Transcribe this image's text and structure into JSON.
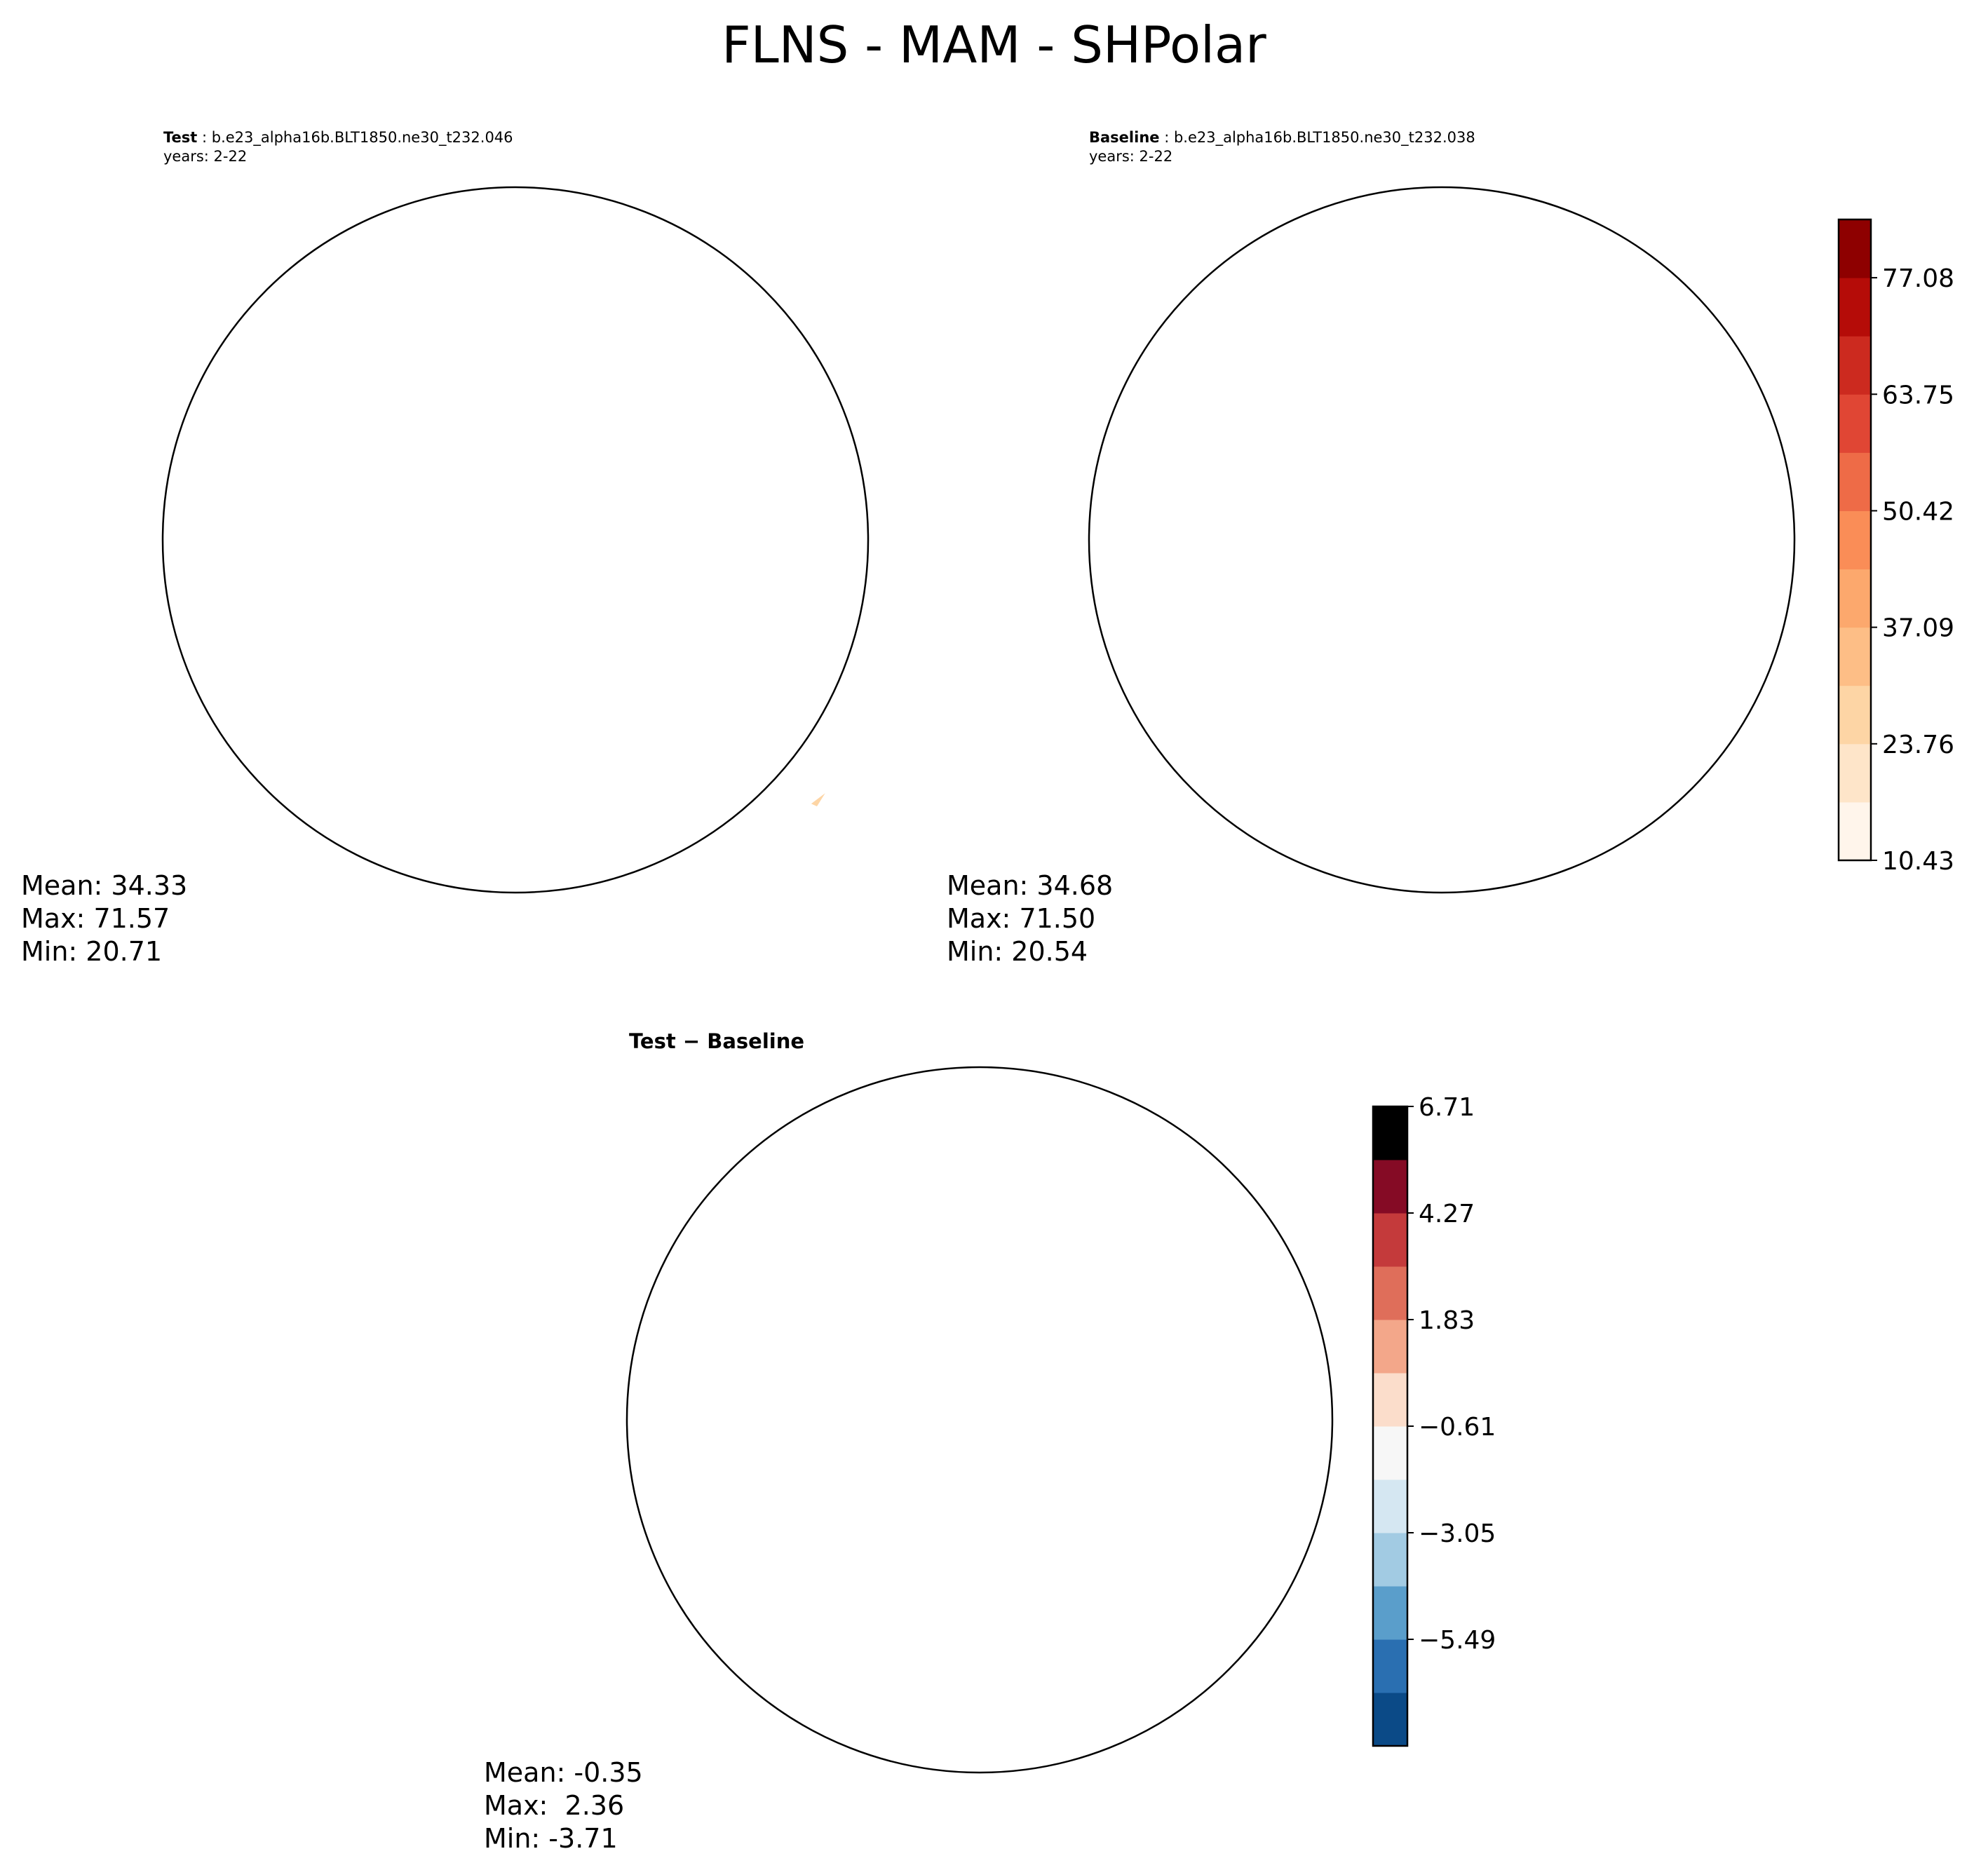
{
  "figure_title": "FLNS - MAM - SHPolar",
  "colors": {
    "seq": [
      "#fff5eb",
      "#fee5c9",
      "#fdd5a5",
      "#fdbe86",
      "#fca86d",
      "#fa8d57",
      "#ee6b47",
      "#e04634",
      "#cc2a1f",
      "#b50c08",
      "#8e0000"
    ],
    "div": [
      "#0b4a87",
      "#2a6fb1",
      "#5a9ecb",
      "#a2cbe3",
      "#d5e7f2",
      "#f7f7f7",
      "#fbddcb",
      "#f3a78a",
      "#df6e5a",
      "#c43a3b",
      "#850b25"
    ],
    "coast": "#000000"
  },
  "chart_data": [
    {
      "type": "heatmap",
      "panel": "test",
      "title_bold": "Test",
      "title_text": " : b.e23_alpha16b.BLT1850.ne30_t232.046",
      "years": "years: 2-22",
      "mean": "Mean: 34.33",
      "max": "Max: 71.57",
      "min": "Min: 20.71",
      "mean_value": 34.33,
      "max_value": 71.57,
      "min_value": 20.71
    },
    {
      "type": "heatmap",
      "panel": "baseline",
      "title_bold": "Baseline",
      "title_text": " : b.e23_alpha16b.BLT1850.ne30_t232.038",
      "years": "years: 2-22",
      "mean": "Mean: 34.68",
      "max": "Max: 71.50",
      "min": "Min: 20.54",
      "mean_value": 34.68,
      "max_value": 71.5,
      "min_value": 20.54,
      "colorbar": {
        "levels": [
          10.43,
          17.095,
          23.76,
          30.425,
          37.09,
          43.755,
          50.42,
          57.085,
          63.75,
          70.415,
          77.08,
          83.745
        ],
        "tick_labels": [
          "10.43",
          "23.76",
          "37.09",
          "50.42",
          "63.75",
          "77.08"
        ],
        "tick_values": [
          10.43,
          23.76,
          37.09,
          50.42,
          63.75,
          77.08
        ]
      }
    },
    {
      "type": "heatmap",
      "panel": "difference",
      "title": "Test − Baseline",
      "mean": "Mean: -0.35",
      "max": "Max:  2.36",
      "min": "Min: -3.71",
      "mean_value": -0.35,
      "max_value": 2.36,
      "min_value": -3.71,
      "colorbar": {
        "levels": [
          -7.93,
          -6.71,
          -5.49,
          -4.27,
          -3.05,
          -1.83,
          -0.61,
          0.61,
          1.83,
          3.05,
          4.27,
          5.49,
          6.71
        ],
        "tick_labels": [
          "6.71",
          "4.27",
          "1.83",
          "−0.61",
          "−3.05",
          "−5.49"
        ],
        "tick_values": [
          6.71,
          4.27,
          1.83,
          -0.61,
          -3.05,
          -5.49
        ]
      }
    }
  ]
}
